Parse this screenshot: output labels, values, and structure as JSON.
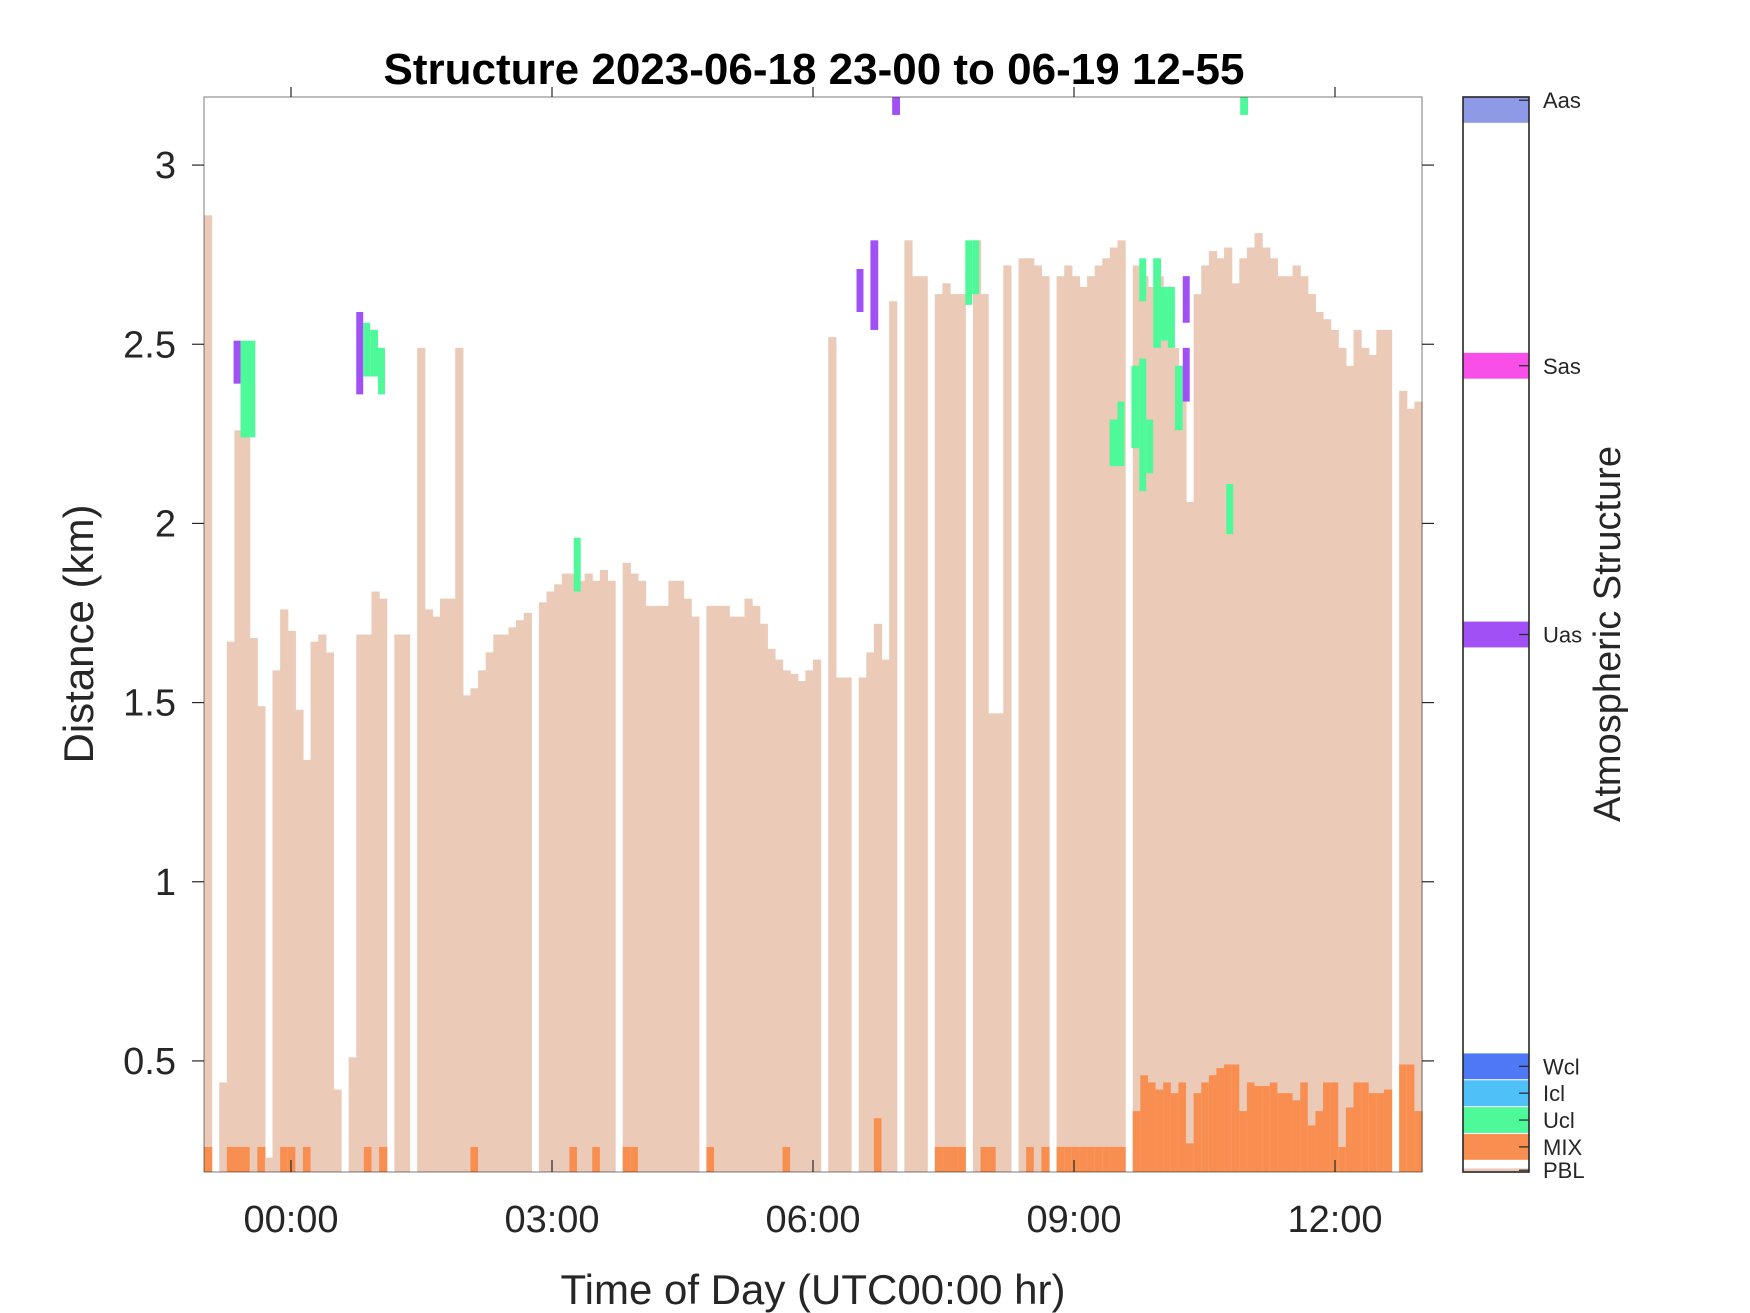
{
  "chart_data": {
    "type": "heatmap",
    "title": "Structure 2023-06-18 23-00 to 06-19 12-55",
    "xlabel": "Time of Day (UTC00:00 hr)",
    "ylabel": "Distance (km)",
    "xlim": [
      -1.0,
      13.0
    ],
    "ylim": [
      0.19,
      3.19
    ],
    "x_ticks": [
      0,
      3,
      6,
      9,
      12
    ],
    "x_tick_labels": [
      "00:00",
      "03:00",
      "06:00",
      "09:00",
      "12:00"
    ],
    "y_ticks": [
      0.5,
      1,
      1.5,
      2,
      2.5,
      3
    ],
    "y_tick_labels": [
      "0.5",
      "1",
      "1.5",
      "2",
      "2.5",
      "3"
    ],
    "profile_interval_hr": 0.0833,
    "colorbar": {
      "label": "Atmospheric Structure",
      "categories": [
        {
          "name": "PBL",
          "color": "#EBCBB8"
        },
        {
          "name": "MIX",
          "color": "#F98E51"
        },
        {
          "name": "Ucl",
          "color": "#4EF99A"
        },
        {
          "name": "Icl",
          "color": "#4FC0F8"
        },
        {
          "name": "Wcl",
          "color": "#4E79F6"
        },
        {
          "name": "Uas",
          "color": "#A050F5"
        },
        {
          "name": "Sas",
          "color": "#F94FE9"
        },
        {
          "name": "Aas",
          "color": "#8E9AE6"
        }
      ]
    },
    "pbl_top_km": [
      2.86,
      0,
      0.44,
      1.67,
      2.26,
      2.27,
      1.68,
      1.49,
      0.23,
      1.59,
      1.76,
      1.7,
      1.48,
      1.34,
      1.67,
      1.69,
      1.64,
      0.42,
      0,
      0.51,
      1.69,
      1.69,
      1.81,
      1.79,
      0,
      1.69,
      1.69,
      0,
      2.49,
      1.76,
      1.74,
      1.79,
      1.79,
      2.49,
      1.52,
      1.54,
      1.59,
      1.64,
      1.69,
      1.69,
      1.71,
      1.73,
      1.75,
      0,
      1.78,
      1.81,
      1.83,
      1.86,
      1.86,
      1.84,
      1.86,
      1.84,
      1.87,
      1.84,
      0,
      1.89,
      1.86,
      1.84,
      1.77,
      1.77,
      1.77,
      1.84,
      1.84,
      1.79,
      1.74,
      0,
      1.77,
      1.77,
      1.77,
      1.74,
      1.74,
      1.79,
      1.77,
      1.72,
      1.65,
      1.62,
      1.59,
      1.58,
      1.56,
      1.59,
      1.62,
      0,
      2.52,
      1.57,
      1.57,
      0,
      1.57,
      1.64,
      1.72,
      1.62,
      2.62,
      0,
      2.79,
      2.69,
      2.69,
      0,
      2.64,
      2.67,
      2.64,
      2.64,
      0,
      2.79,
      2.64,
      1.47,
      1.47,
      2.72,
      0,
      2.74,
      2.74,
      2.72,
      2.69,
      0,
      2.69,
      2.72,
      2.69,
      2.66,
      2.69,
      2.72,
      2.74,
      2.77,
      2.79,
      0,
      2.72,
      2.69,
      2.66,
      2.69,
      2.64,
      2.49,
      2.44,
      2.06,
      2.64,
      2.72,
      2.76,
      2.74,
      2.77,
      2.67,
      2.74,
      2.77,
      2.81,
      2.77,
      2.74,
      2.69,
      2.69,
      2.72,
      2.69,
      2.64,
      2.59,
      2.57,
      2.54,
      2.49,
      2.44,
      2.54,
      2.49,
      2.47,
      2.54,
      2.54,
      0,
      2.37,
      2.32,
      2.34
    ],
    "mix_top_km": [
      0.26,
      0,
      0.19,
      0.26,
      0.26,
      0.26,
      0.19,
      0.26,
      0,
      0.19,
      0.26,
      0.26,
      0.19,
      0.26,
      0.19,
      0.19,
      0.19,
      0.19,
      0,
      0.19,
      0.19,
      0.26,
      0.19,
      0.26,
      0,
      0.19,
      0.19,
      0,
      0.19,
      0.19,
      0.19,
      0.19,
      0.19,
      0.19,
      0.19,
      0.26,
      0.19,
      0.19,
      0.19,
      0.19,
      0.19,
      0.19,
      0.19,
      0,
      0.19,
      0.19,
      0.19,
      0.19,
      0.26,
      0.19,
      0.19,
      0.26,
      0.19,
      0.19,
      0,
      0.26,
      0.26,
      0.19,
      0.19,
      0.19,
      0.19,
      0.19,
      0.19,
      0.19,
      0.19,
      0,
      0.26,
      0.19,
      0.19,
      0.19,
      0.19,
      0.19,
      0.19,
      0.19,
      0.19,
      0.19,
      0.26,
      0.19,
      0.19,
      0.19,
      0.19,
      0,
      0.19,
      0.19,
      0.19,
      0,
      0.19,
      0.19,
      0.34,
      0.19,
      0.19,
      0,
      0.19,
      0.19,
      0.19,
      0,
      0.26,
      0.26,
      0.26,
      0.26,
      0,
      0.19,
      0.26,
      0.26,
      0.19,
      0.19,
      0,
      0.19,
      0.26,
      0.19,
      0.26,
      0,
      0.26,
      0.26,
      0.26,
      0.26,
      0.26,
      0.26,
      0.26,
      0.26,
      0.26,
      0,
      0.36,
      0.46,
      0.44,
      0.42,
      0.44,
      0.41,
      0.44,
      0.27,
      0.41,
      0.44,
      0.46,
      0.48,
      0.49,
      0.49,
      0.36,
      0.44,
      0.43,
      0.43,
      0.44,
      0.41,
      0.41,
      0.39,
      0.44,
      0.32,
      0.36,
      0.44,
      0.44,
      0.26,
      0.37,
      0.44,
      0.44,
      0.41,
      0.41,
      0.42,
      0,
      0.49,
      0.49,
      0.36
    ],
    "features": [
      {
        "type": "Uas",
        "x_start": -0.66,
        "x_end": -0.58,
        "y_bottom": 2.39,
        "y_top": 2.51
      },
      {
        "type": "Ucl",
        "x_start": -0.58,
        "x_end": -0.41,
        "y_bottom": 2.24,
        "y_top": 2.51
      },
      {
        "type": "Uas",
        "x_start": 0.75,
        "x_end": 0.83,
        "y_bottom": 2.36,
        "y_top": 2.59
      },
      {
        "type": "Ucl",
        "x_start": 0.83,
        "x_end": 0.91,
        "y_bottom": 2.41,
        "y_top": 2.56
      },
      {
        "type": "Ucl",
        "x_start": 0.91,
        "x_end": 1.0,
        "y_bottom": 2.41,
        "y_top": 2.54
      },
      {
        "type": "Ucl",
        "x_start": 1.0,
        "x_end": 1.08,
        "y_bottom": 2.36,
        "y_top": 2.49
      },
      {
        "type": "Ucl",
        "x_start": 3.25,
        "x_end": 3.33,
        "y_bottom": 1.81,
        "y_top": 1.96
      },
      {
        "type": "Uas",
        "x_start": 6.5,
        "x_end": 6.58,
        "y_bottom": 2.59,
        "y_top": 2.71
      },
      {
        "type": "Uas",
        "x_start": 6.66,
        "x_end": 6.75,
        "y_bottom": 2.54,
        "y_top": 2.79
      },
      {
        "type": "Uas",
        "x_start": 6.91,
        "x_end": 7.0,
        "y_bottom": 3.14,
        "y_top": 3.19
      },
      {
        "type": "Ucl",
        "x_start": 7.75,
        "x_end": 7.83,
        "y_bottom": 2.61,
        "y_top": 2.79
      },
      {
        "type": "Ucl",
        "x_start": 7.83,
        "x_end": 7.91,
        "y_bottom": 2.64,
        "y_top": 2.79
      },
      {
        "type": "Ucl",
        "x_start": 9.41,
        "x_end": 9.5,
        "y_bottom": 2.16,
        "y_top": 2.29
      },
      {
        "type": "Ucl",
        "x_start": 9.5,
        "x_end": 9.58,
        "y_bottom": 2.16,
        "y_top": 2.34
      },
      {
        "type": "Ucl",
        "x_start": 9.66,
        "x_end": 9.75,
        "y_bottom": 2.21,
        "y_top": 2.44
      },
      {
        "type": "Ucl",
        "x_start": 9.75,
        "x_end": 9.83,
        "y_bottom": 2.09,
        "y_top": 2.46
      },
      {
        "type": "Ucl",
        "x_start": 9.75,
        "x_end": 9.83,
        "y_bottom": 2.62,
        "y_top": 2.74
      },
      {
        "type": "Ucl",
        "x_start": 9.83,
        "x_end": 9.91,
        "y_bottom": 2.14,
        "y_top": 2.29
      },
      {
        "type": "Ucl",
        "x_start": 9.91,
        "x_end": 10.0,
        "y_bottom": 2.49,
        "y_top": 2.74
      },
      {
        "type": "Ucl",
        "x_start": 10.0,
        "x_end": 10.08,
        "y_bottom": 2.51,
        "y_top": 2.66
      },
      {
        "type": "Ucl",
        "x_start": 10.08,
        "x_end": 10.16,
        "y_bottom": 2.49,
        "y_top": 2.66
      },
      {
        "type": "Ucl",
        "x_start": 10.16,
        "x_end": 10.25,
        "y_bottom": 2.26,
        "y_top": 2.44
      },
      {
        "type": "Uas",
        "x_start": 10.25,
        "x_end": 10.33,
        "y_bottom": 2.34,
        "y_top": 2.49
      },
      {
        "type": "Uas",
        "x_start": 10.25,
        "x_end": 10.33,
        "y_bottom": 2.56,
        "y_top": 2.69
      },
      {
        "type": "Ucl",
        "x_start": 10.75,
        "x_end": 10.83,
        "y_bottom": 1.97,
        "y_top": 2.11
      },
      {
        "type": "Ucl",
        "x_start": 10.91,
        "x_end": 11.0,
        "y_bottom": 3.14,
        "y_top": 3.19
      }
    ]
  }
}
